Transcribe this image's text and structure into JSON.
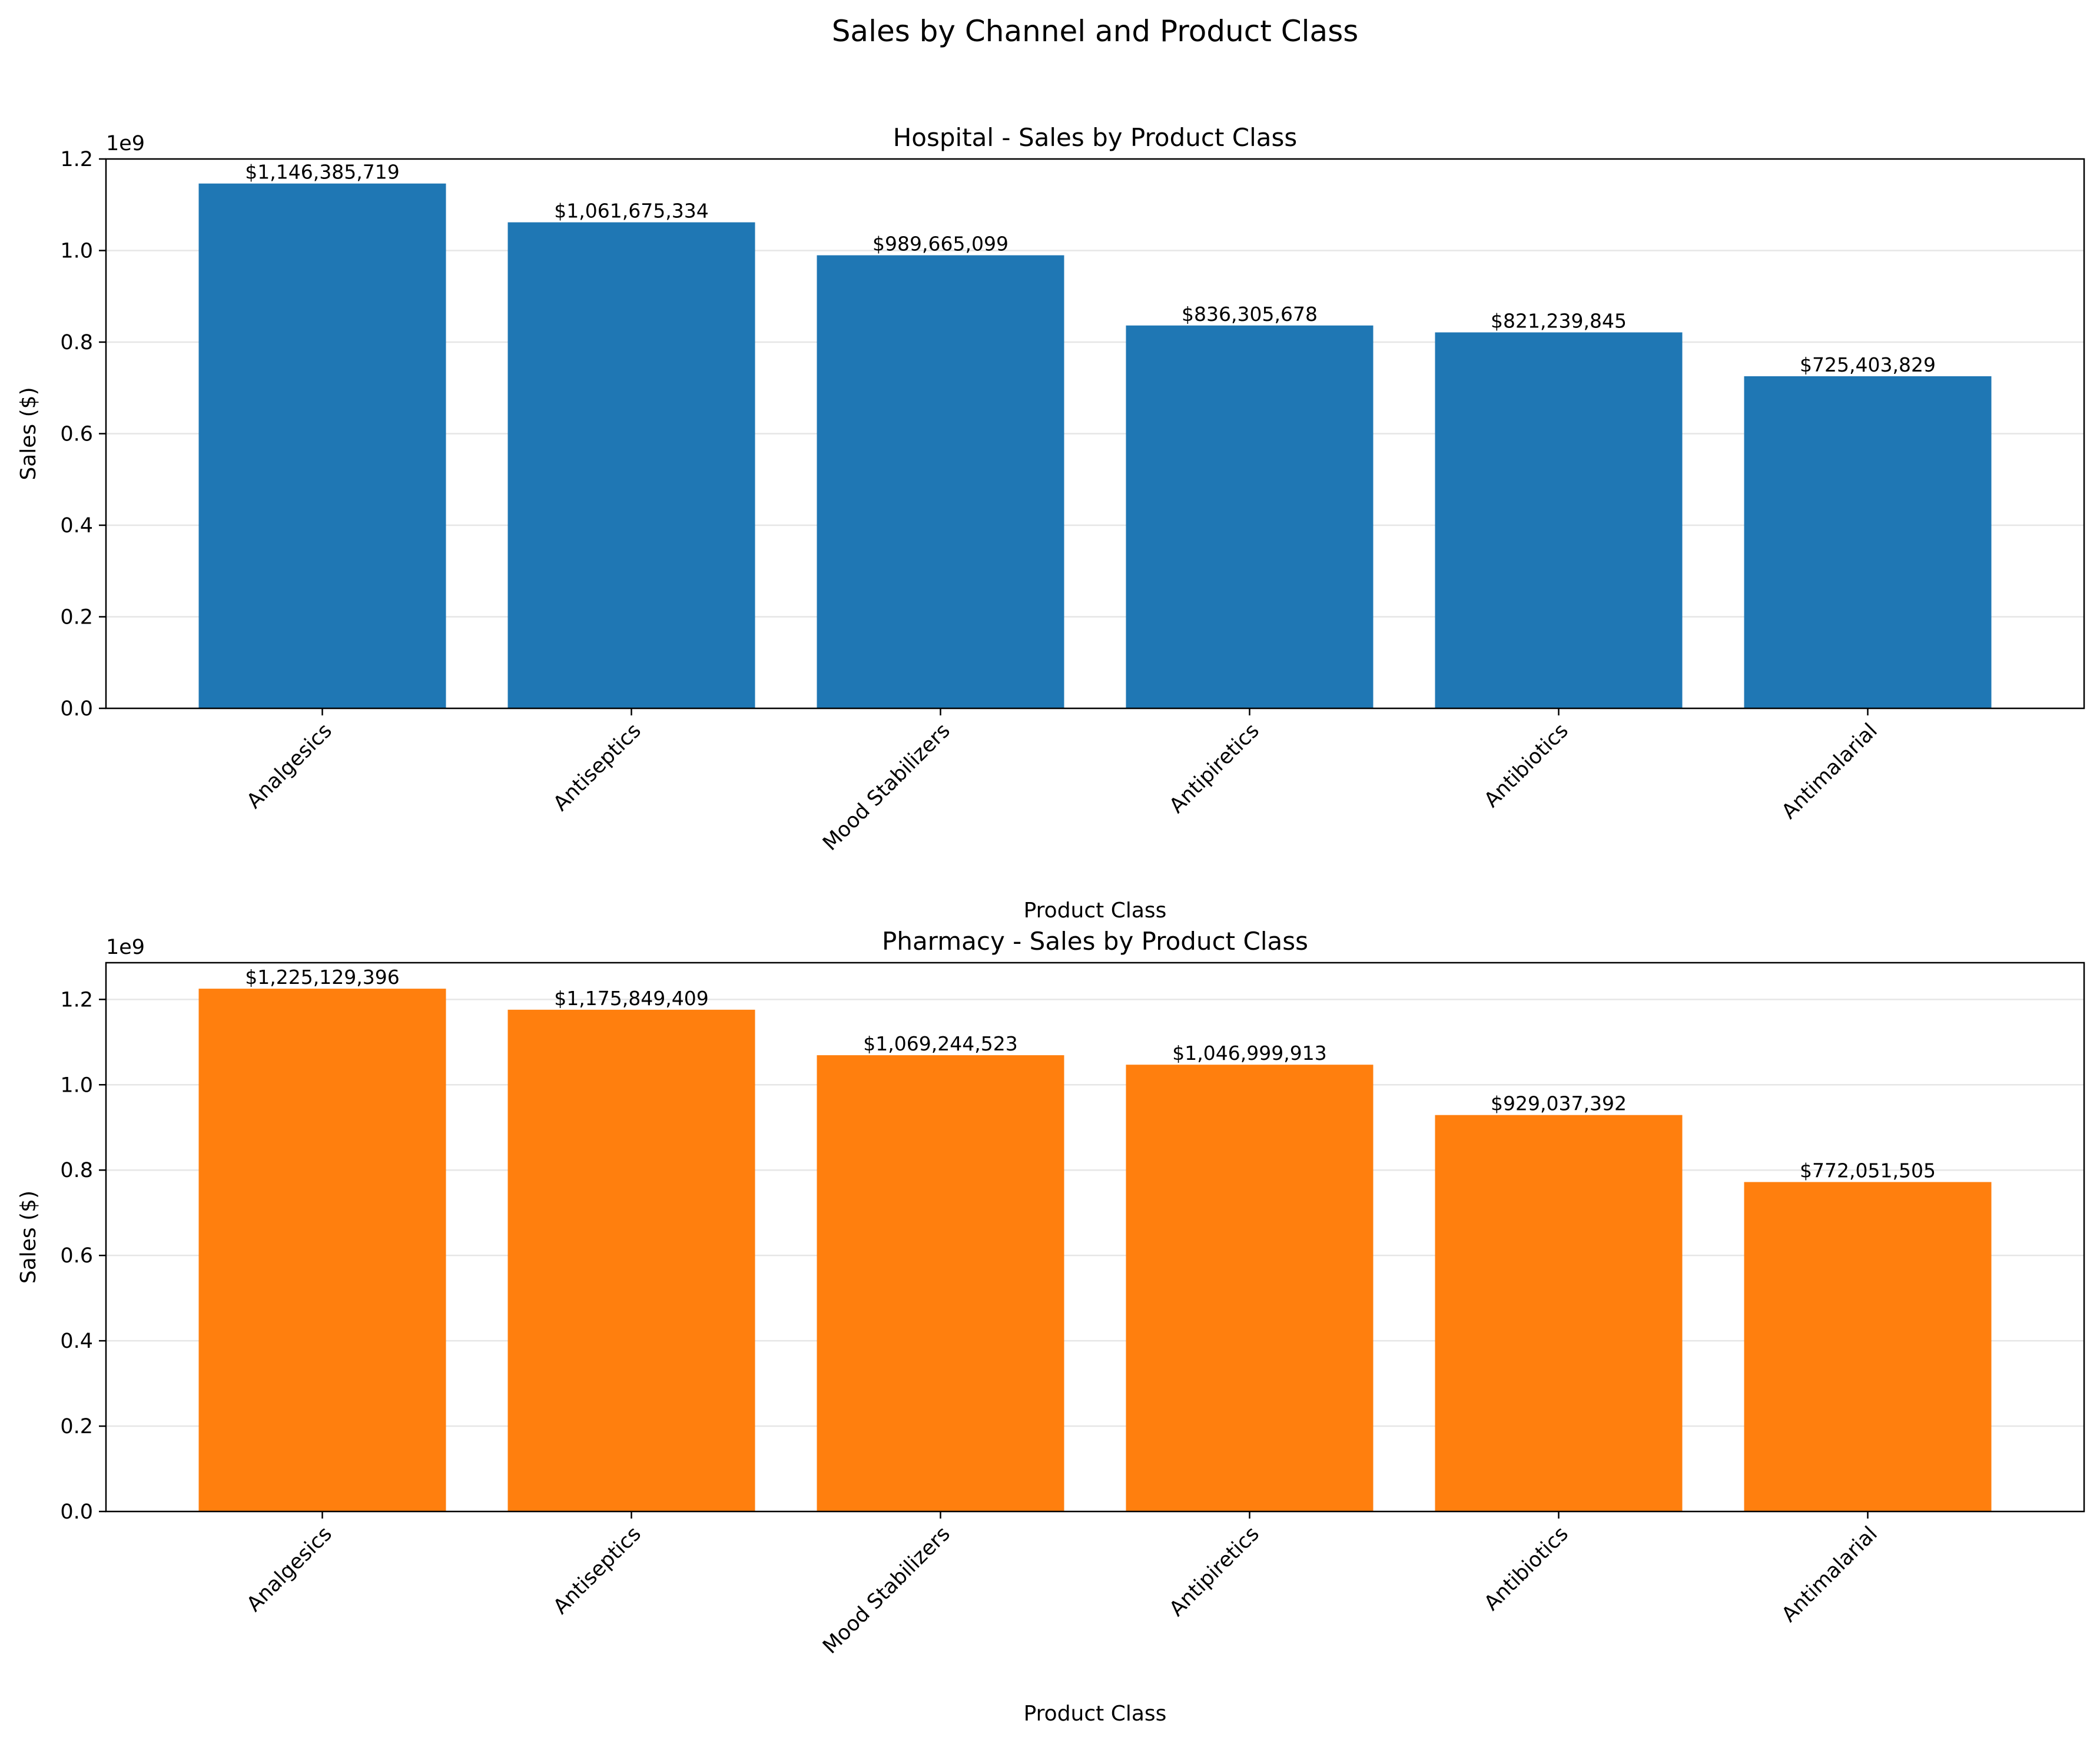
{
  "figure": {
    "title": "Sales by Channel and Product Class"
  },
  "chart_data": [
    {
      "type": "bar",
      "title": "Hospital - Sales by Product Class",
      "xlabel": "Product Class",
      "ylabel": "Sales ($)",
      "offset_label": "1e9",
      "color": "#1f77b4",
      "grid": "y",
      "ylim": [
        0,
        1.2
      ],
      "yticks": [
        "0.0",
        "0.2",
        "0.4",
        "0.6",
        "0.8",
        "1.0",
        "1.2"
      ],
      "categories": [
        "Analgesics",
        "Antiseptics",
        "Mood Stabilizers",
        "Antipiretics",
        "Antibiotics",
        "Antimalarial"
      ],
      "values": [
        1146385719,
        1061675334,
        989665099,
        836305678,
        821239845,
        725403829
      ],
      "data_labels": [
        "$1,146,385,719",
        "$1,061,675,334",
        "$989,665,099",
        "$836,305,678",
        "$821,239,845",
        "$725,403,829"
      ]
    },
    {
      "type": "bar",
      "title": "Pharmacy - Sales by Product Class",
      "xlabel": "Product Class",
      "ylabel": "Sales ($)",
      "offset_label": "1e9",
      "color": "#ff7f0e",
      "grid": "y",
      "ylim": [
        0,
        1.286
      ],
      "yticks": [
        "0.0",
        "0.2",
        "0.4",
        "0.6",
        "0.8",
        "1.0",
        "1.2"
      ],
      "categories": [
        "Analgesics",
        "Antiseptics",
        "Mood Stabilizers",
        "Antipiretics",
        "Antibiotics",
        "Antimalarial"
      ],
      "values": [
        1225129396,
        1175849409,
        1069244523,
        1046999913,
        929037392,
        772051505
      ],
      "data_labels": [
        "$1,225,129,396",
        "$1,175,849,409",
        "$1,069,244,523",
        "$1,046,999,913",
        "$929,037,392",
        "$772,051,505"
      ]
    }
  ]
}
